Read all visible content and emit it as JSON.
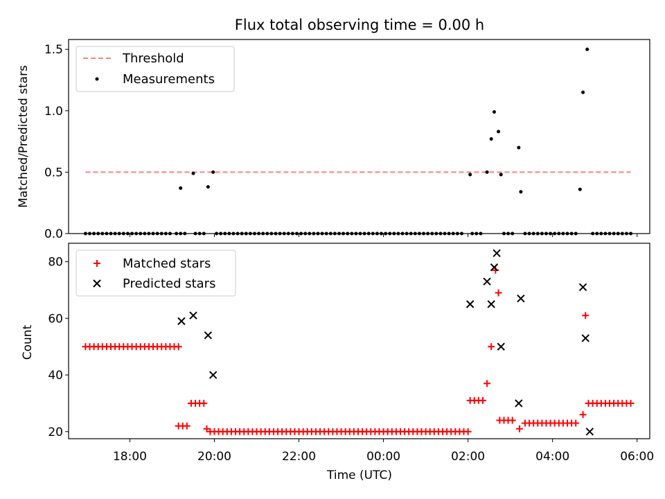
{
  "title": "Flux total observing time = 0.00 h",
  "chart_data": [
    {
      "type": "scatter",
      "ylabel": "Matched/Predicted stars",
      "ylim": [
        0.0,
        1.58
      ],
      "yticks": [
        0.0,
        0.5,
        1.0,
        1.5
      ],
      "ytick_labels": [
        "0.0",
        "0.5",
        "1.0",
        "1.5"
      ],
      "xlim_hours": [
        16.55,
        30.3
      ],
      "legend_position": "top-left",
      "threshold": {
        "name": "Threshold",
        "value": 0.5,
        "x_start": 16.95,
        "x_end": 29.85,
        "color": "#ff7f7f"
      },
      "series": [
        {
          "name": "Measurements",
          "color": "#000000",
          "marker": "dot",
          "points": [
            [
              19.2,
              0.37
            ],
            [
              19.5,
              0.49
            ],
            [
              19.85,
              0.38
            ],
            [
              19.97,
              0.5
            ],
            [
              26.05,
              0.48
            ],
            [
              26.45,
              0.5
            ],
            [
              26.55,
              0.77
            ],
            [
              26.62,
              0.99
            ],
            [
              26.72,
              0.83
            ],
            [
              26.78,
              0.48
            ],
            [
              27.2,
              0.7
            ],
            [
              27.25,
              0.34
            ],
            [
              28.65,
              0.36
            ],
            [
              28.72,
              1.15
            ],
            [
              28.82,
              1.5
            ]
          ],
          "zero_runs": [
            [
              16.95,
              19.0,
              0.1
            ],
            [
              19.1,
              19.3,
              0.1
            ],
            [
              19.55,
              19.8,
              0.1
            ],
            [
              20.05,
              25.9,
              0.1
            ],
            [
              26.1,
              26.35,
              0.1
            ],
            [
              26.85,
              27.05,
              0.1
            ],
            [
              27.35,
              28.55,
              0.1
            ],
            [
              28.95,
              29.85,
              0.1
            ]
          ]
        }
      ]
    },
    {
      "type": "scatter",
      "xlabel": "Time (UTC)",
      "ylabel": "Count",
      "ylim": [
        17.5,
        86.5
      ],
      "yticks": [
        20,
        40,
        60,
        80
      ],
      "ytick_labels": [
        "20",
        "40",
        "60",
        "80"
      ],
      "xlim_hours": [
        16.55,
        30.3
      ],
      "xticks_hours": [
        18,
        20,
        22,
        24,
        26,
        28,
        30
      ],
      "xtick_labels": [
        "18:00",
        "20:00",
        "22:00",
        "00:00",
        "02:00",
        "04:00",
        "06:00"
      ],
      "legend_position": "top-left",
      "series": [
        {
          "name": "Matched stars",
          "color": "#ff0000",
          "marker": "plus",
          "runs": [
            [
              16.95,
              19.15,
              50,
              0.1
            ],
            [
              19.15,
              19.35,
              22,
              0.1
            ],
            [
              19.45,
              19.75,
              30,
              0.1
            ],
            [
              19.9,
              26.0,
              20,
              0.1
            ],
            [
              26.05,
              26.4,
              31,
              0.1
            ],
            [
              26.75,
              27.1,
              24,
              0.1
            ],
            [
              27.35,
              28.55,
              23,
              0.1
            ],
            [
              28.85,
              29.85,
              30,
              0.1
            ]
          ],
          "points": [
            [
              19.82,
              21
            ],
            [
              26.45,
              37
            ],
            [
              26.55,
              50
            ],
            [
              26.65,
              77
            ],
            [
              26.72,
              69
            ],
            [
              27.22,
              21
            ],
            [
              28.72,
              26
            ],
            [
              28.78,
              61
            ]
          ]
        },
        {
          "name": "Predicted stars",
          "color": "#000000",
          "marker": "x",
          "points": [
            [
              19.22,
              59
            ],
            [
              19.5,
              61
            ],
            [
              19.85,
              54
            ],
            [
              19.97,
              40
            ],
            [
              26.05,
              65
            ],
            [
              26.45,
              73
            ],
            [
              26.55,
              65
            ],
            [
              26.62,
              78
            ],
            [
              26.68,
              83
            ],
            [
              26.78,
              50
            ],
            [
              27.2,
              30
            ],
            [
              27.25,
              67
            ],
            [
              28.72,
              71
            ],
            [
              28.78,
              53
            ],
            [
              28.88,
              20
            ]
          ]
        }
      ]
    }
  ]
}
